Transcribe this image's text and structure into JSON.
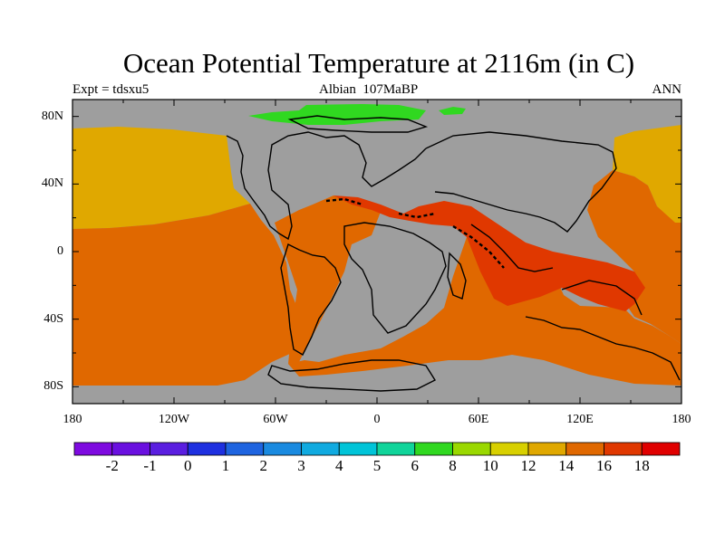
{
  "title": "Ocean Potential Temperature at 2116m (in C)",
  "experiment": "Expt = tdsxu5",
  "stage": "Albian",
  "age": "107MaBP",
  "season": "ANN",
  "map": {
    "lat_range": [
      -90,
      90
    ],
    "lon_range": [
      -180,
      180
    ],
    "lat_tick_labels": [
      "80N",
      "40N",
      "0",
      "40S",
      "80S"
    ],
    "lon_tick_labels": [
      "180",
      "120W",
      "60W",
      "0",
      "60E",
      "120E",
      "180"
    ],
    "land_color": "#9e9e9e",
    "ocean_regions": [
      {
        "name": "north-pacific-west",
        "value_range": "12-14",
        "color": "#e0a800"
      },
      {
        "name": "north-pacific-east",
        "value_range": "12-14",
        "color": "#e0a800"
      },
      {
        "name": "pacific-main",
        "value_range": "14-16",
        "color": "#e06800"
      },
      {
        "name": "atlantic",
        "value_range": "14-16",
        "color": "#e06800"
      },
      {
        "name": "southern-ocean",
        "value_range": "14-16",
        "color": "#e06800"
      },
      {
        "name": "tethys",
        "value_range": "16-18",
        "color": "#e03800"
      },
      {
        "name": "arctic-patch",
        "value_range": "6-8",
        "color": "#30d820"
      }
    ]
  },
  "colorbar": {
    "colors": [
      "#7e0ae0",
      "#6a10e0",
      "#5a1ee0",
      "#1e30e0",
      "#1e64e0",
      "#1a8ae0",
      "#10aae0",
      "#00c4d8",
      "#10d49a",
      "#30d820",
      "#9ad800",
      "#d8d000",
      "#e0a800",
      "#e06800",
      "#e03800",
      "#e00000"
    ],
    "labels": [
      "-2",
      "-1",
      "0",
      "1",
      "2",
      "3",
      "4",
      "5",
      "6",
      "8",
      "10",
      "12",
      "14",
      "16",
      "18"
    ]
  }
}
